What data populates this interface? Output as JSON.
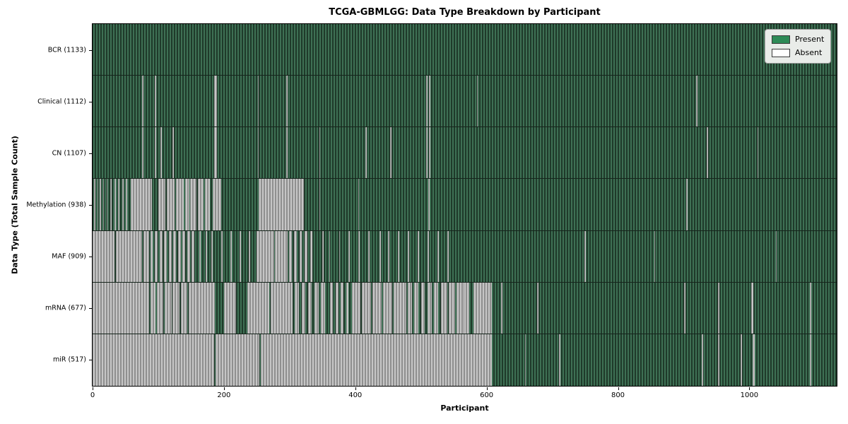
{
  "chart_data": {
    "type": "heatmap",
    "title": "TCGA-GBMLGG: Data Type Breakdown by Participant",
    "xlabel": "Participant",
    "ylabel": "Data Type (Total Sample Count)",
    "x_ticks": [
      0,
      200,
      400,
      600,
      800,
      1000
    ],
    "x_domain": [
      0,
      1133
    ],
    "n_participants": 1133,
    "grid": false,
    "legend": {
      "position": "upper right",
      "entries": [
        {
          "label": "Present",
          "color": "#2e8b57"
        },
        {
          "label": "Absent",
          "color": "#ffffff"
        }
      ]
    },
    "colors": {
      "present": "#2e8b57",
      "absent": "#ffffff",
      "present_stripe_light": "#3e7054",
      "present_stripe_dark": "#1f3a2a",
      "absent_stripe_light": "#c6c6c6",
      "absent_stripe_dark": "#8f8f8f",
      "legend_bg": "#e9ece9",
      "row_divider": "#15241b"
    },
    "rows": [
      {
        "label": "BCR (1133)",
        "name": "BCR",
        "present_count": 1133,
        "absent_ranges": []
      },
      {
        "label": "Clinical (1112)",
        "name": "Clinical",
        "present_count": 1112,
        "absent_ranges": [
          [
            75,
            77
          ],
          [
            95,
            97
          ],
          [
            185,
            189
          ],
          [
            252,
            253
          ],
          [
            295,
            297
          ],
          [
            508,
            510
          ],
          [
            512,
            514
          ],
          [
            585,
            586
          ],
          [
            919,
            921
          ]
        ]
      },
      {
        "label": "CN (1107)",
        "name": "CN",
        "present_count": 1107,
        "absent_ranges": [
          [
            75,
            77
          ],
          [
            95,
            97
          ],
          [
            103,
            105
          ],
          [
            122,
            124
          ],
          [
            185,
            189
          ],
          [
            252,
            253
          ],
          [
            295,
            297
          ],
          [
            345,
            347
          ],
          [
            415,
            417
          ],
          [
            453,
            455
          ],
          [
            508,
            510
          ],
          [
            512,
            514
          ],
          [
            935,
            937
          ],
          [
            1012,
            1014
          ]
        ]
      },
      {
        "label": "Methylation (938)",
        "name": "Methylation",
        "present_count": 938,
        "absent_ranges": [
          [
            2,
            4
          ],
          [
            7,
            8
          ],
          [
            11,
            13
          ],
          [
            16,
            17
          ],
          [
            21,
            23
          ],
          [
            27,
            29
          ],
          [
            33,
            35
          ],
          [
            39,
            41
          ],
          [
            45,
            47
          ],
          [
            51,
            53
          ],
          [
            58,
            90
          ],
          [
            100,
            111
          ],
          [
            113,
            125
          ],
          [
            127,
            139
          ],
          [
            141,
            147
          ],
          [
            149,
            158
          ],
          [
            160,
            169
          ],
          [
            171,
            179
          ],
          [
            183,
            196
          ],
          [
            253,
            322
          ],
          [
            345,
            347
          ],
          [
            405,
            406
          ],
          [
            511,
            513
          ],
          [
            904,
            906
          ]
        ]
      },
      {
        "label": "MAF (909)",
        "name": "MAF",
        "present_count": 909,
        "absent_ranges": [
          [
            0,
            33
          ],
          [
            35,
            75
          ],
          [
            77,
            86
          ],
          [
            88,
            92
          ],
          [
            95,
            99
          ],
          [
            102,
            106
          ],
          [
            109,
            113
          ],
          [
            116,
            120
          ],
          [
            123,
            127
          ],
          [
            130,
            134
          ],
          [
            137,
            141
          ],
          [
            144,
            148
          ],
          [
            151,
            155
          ],
          [
            163,
            165
          ],
          [
            172,
            174
          ],
          [
            181,
            183
          ],
          [
            196,
            198
          ],
          [
            210,
            212
          ],
          [
            224,
            226
          ],
          [
            238,
            240
          ],
          [
            250,
            276
          ],
          [
            278,
            297
          ],
          [
            299,
            303
          ],
          [
            307,
            311
          ],
          [
            315,
            319
          ],
          [
            323,
            327
          ],
          [
            331,
            335
          ],
          [
            350,
            352
          ],
          [
            360,
            362
          ],
          [
            375,
            377
          ],
          [
            390,
            392
          ],
          [
            405,
            407
          ],
          [
            420,
            422
          ],
          [
            437,
            439
          ],
          [
            450,
            452
          ],
          [
            465,
            467
          ],
          [
            480,
            482
          ],
          [
            495,
            497
          ],
          [
            510,
            512
          ],
          [
            525,
            527
          ],
          [
            540,
            542
          ],
          [
            749,
            751
          ],
          [
            855,
            857
          ],
          [
            1040,
            1042
          ]
        ]
      },
      {
        "label": "mRNA (677)",
        "name": "mRNA",
        "present_count": 677,
        "absent_ranges": [
          [
            0,
            86
          ],
          [
            88,
            96
          ],
          [
            98,
            108
          ],
          [
            110,
            120
          ],
          [
            122,
            132
          ],
          [
            134,
            144
          ],
          [
            146,
            160
          ],
          [
            160,
            186
          ],
          [
            200,
            218
          ],
          [
            236,
            269
          ],
          [
            271,
            305
          ],
          [
            308,
            314
          ],
          [
            318,
            324
          ],
          [
            328,
            334
          ],
          [
            338,
            344
          ],
          [
            348,
            354
          ],
          [
            362,
            366
          ],
          [
            370,
            374
          ],
          [
            378,
            382
          ],
          [
            386,
            390
          ],
          [
            395,
            408
          ],
          [
            410,
            424
          ],
          [
            426,
            440
          ],
          [
            442,
            456
          ],
          [
            458,
            478
          ],
          [
            480,
            486
          ],
          [
            490,
            496
          ],
          [
            500,
            506
          ],
          [
            510,
            516
          ],
          [
            520,
            526
          ],
          [
            530,
            540
          ],
          [
            542,
            552
          ],
          [
            554,
            565
          ],
          [
            565,
            574
          ],
          [
            580,
            608
          ],
          [
            622,
            624
          ],
          [
            677,
            679
          ],
          [
            901,
            903
          ],
          [
            952,
            954
          ],
          [
            1003,
            1006
          ],
          [
            1092,
            1094
          ]
        ]
      },
      {
        "label": "miR (517)",
        "name": "miR",
        "present_count": 517,
        "absent_ranges": [
          [
            0,
            185
          ],
          [
            187,
            254
          ],
          [
            256,
            608
          ],
          [
            658,
            660
          ],
          [
            710,
            712
          ],
          [
            928,
            930
          ],
          [
            952,
            954
          ],
          [
            987,
            989
          ],
          [
            1005,
            1008
          ],
          [
            1092,
            1094
          ]
        ]
      }
    ]
  }
}
